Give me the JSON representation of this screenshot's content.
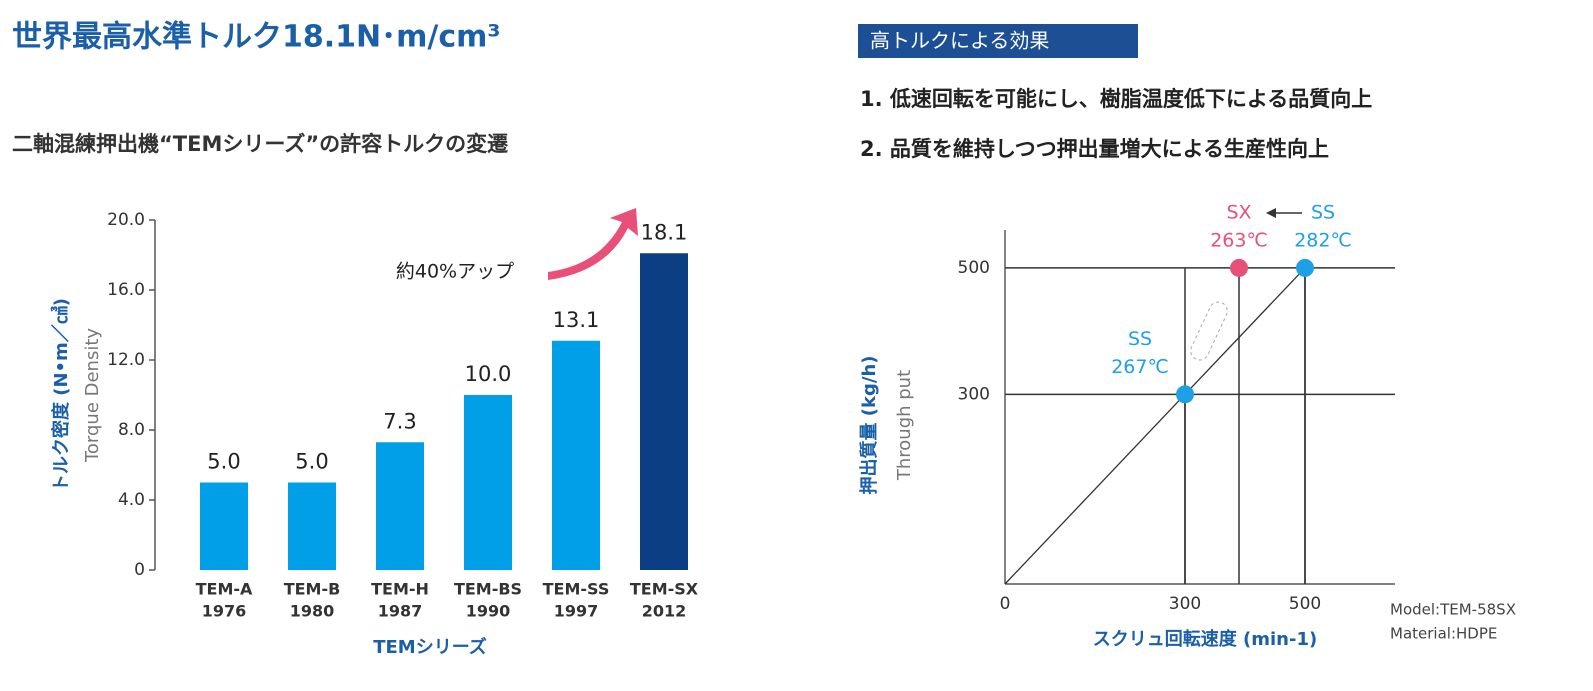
{
  "page": {
    "title": "世界最高水準トルク18.1N･m/cm³",
    "badge": "高トルクによる効果",
    "points": [
      "1. 低速回転を可能にし、樹脂温度低下による品質向上",
      "2. 品質を維持しつつ押出量増大による生産性向上"
    ]
  },
  "chart_data": [
    {
      "type": "bar",
      "title": "二軸混練押出機“TEMシリーズ”の許容トルクの変遷",
      "y_label": [
        "トルク密度 (N•m／㎤)",
        "Torque Density"
      ],
      "x_label": "TEMシリーズ",
      "categories": [
        [
          "TEM-A",
          "1976"
        ],
        [
          "TEM-B",
          "1980"
        ],
        [
          "TEM-H",
          "1987"
        ],
        [
          "TEM-BS",
          "1990"
        ],
        [
          "TEM-SS",
          "1997"
        ],
        [
          "TEM-SX",
          "2012"
        ]
      ],
      "values": [
        5,
        5,
        7.3,
        10,
        13.1,
        18.1
      ],
      "value_labels": [
        "5.0",
        "5.0",
        "7.3",
        "10.0",
        "13.1",
        "18.1"
      ],
      "colors": [
        "#009fe8",
        "#009fe8",
        "#009fe8",
        "#009fe8",
        "#009fe8",
        "#0b3e82"
      ],
      "ylim": [
        0,
        20
      ],
      "yticks": [
        0,
        {
          "value": 4,
          "label": "4.0"
        },
        {
          "value": 8,
          "label": "8.0"
        },
        {
          "value": 12,
          "label": "12.0"
        },
        {
          "value": 16,
          "label": "16.0"
        },
        {
          "value": 20,
          "label": "20.0"
        }
      ],
      "annotation": "約40%アップ"
    },
    {
      "type": "line",
      "x_label": "スクリュ回転速度 (min-1)",
      "y_label": [
        "押出質量 (kg/h)",
        "Through put"
      ],
      "xlim": [
        0,
        650
      ],
      "ylim": [
        0,
        560
      ],
      "xticks": [
        0,
        300,
        500
      ],
      "yticks": [
        300,
        500
      ],
      "series": [
        {
          "color": "#333333",
          "x": [
            0,
            500
          ],
          "values": [
            0,
            500
          ]
        }
      ],
      "points": [
        {
          "name": "SS",
          "label": "267℃",
          "x": 300,
          "y": 300,
          "color": "#1ea0e6"
        },
        {
          "name": "SX",
          "label": "263℃",
          "x": 390,
          "y": 500,
          "color": "#e8507a"
        },
        {
          "name": "SS",
          "label": "282℃",
          "x": 500,
          "y": 500,
          "color": "#1ea0e6"
        }
      ],
      "notes": [
        "Model:TEM-58SX",
        "Material:HDPE"
      ]
    }
  ]
}
